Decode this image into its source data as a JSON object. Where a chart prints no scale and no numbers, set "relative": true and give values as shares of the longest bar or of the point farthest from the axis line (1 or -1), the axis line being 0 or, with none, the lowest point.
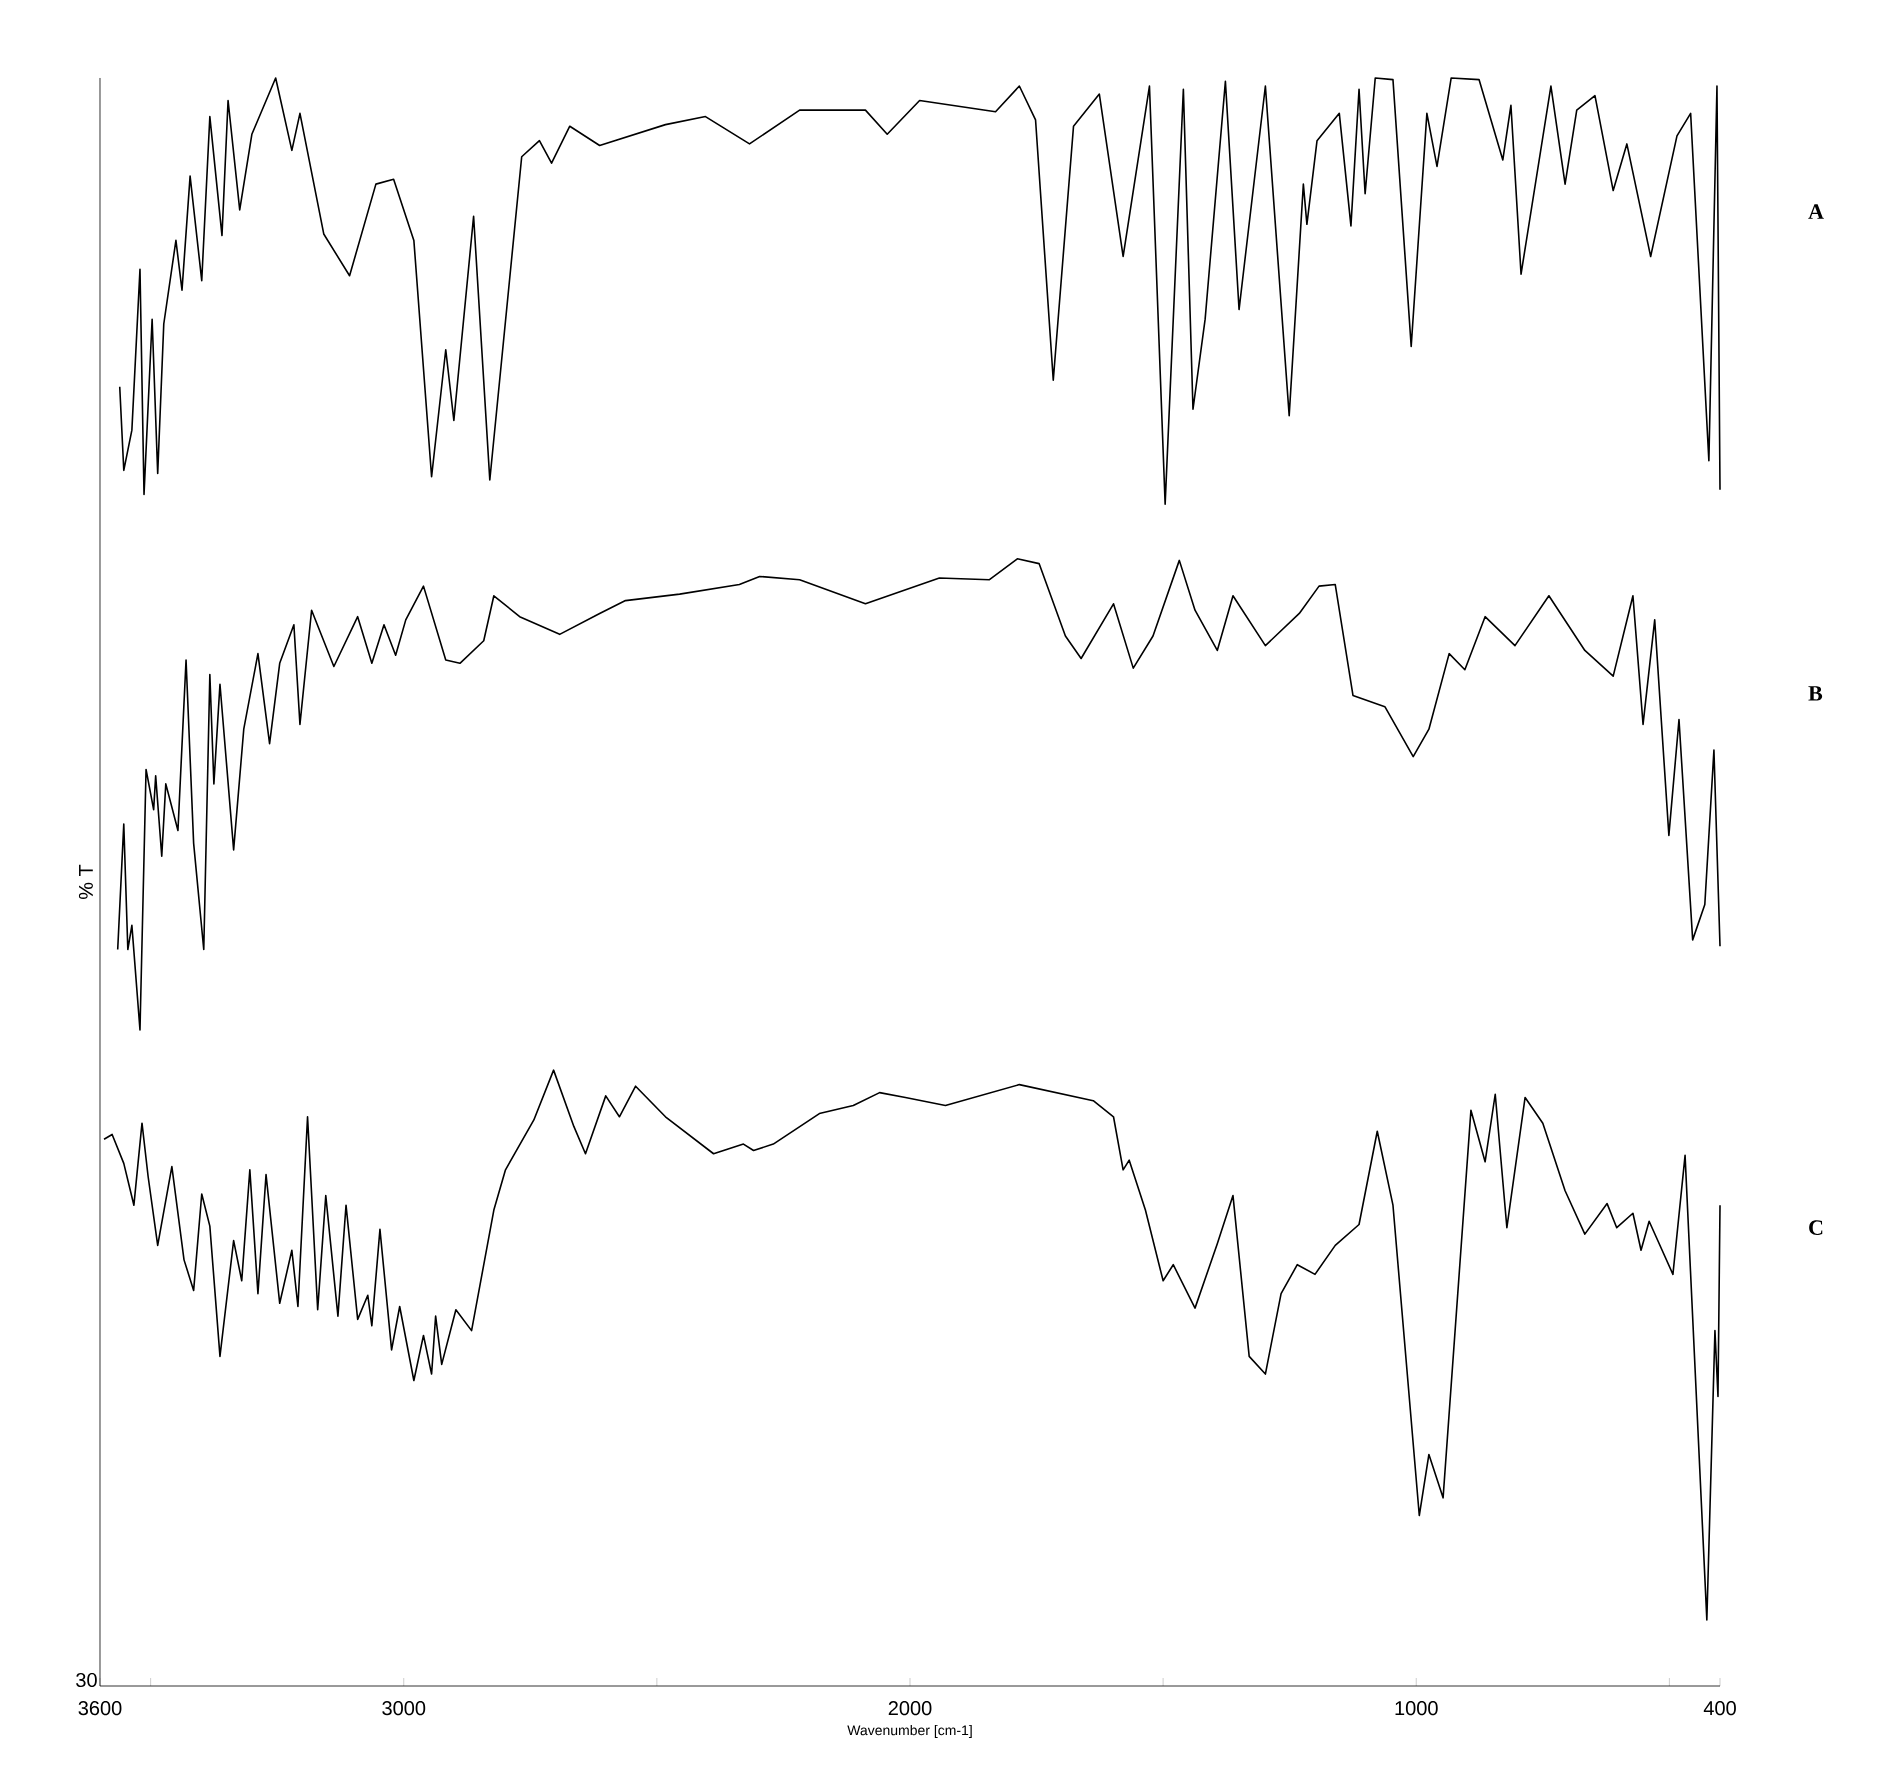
{
  "chart_data": {
    "type": "line",
    "relative": true,
    "xlabel": "Wavenumber [cm-1]",
    "ylabel": "% T",
    "xlim": [
      3600,
      400
    ],
    "xticks": [
      3600,
      {
        "value": 3500,
        "label": null
      },
      3000,
      {
        "value": 2500,
        "label": null
      },
      2000,
      {
        "value": 1500,
        "label": null
      },
      1000,
      {
        "value": 500,
        "label": null
      },
      400
    ],
    "legend": false,
    "grid": false,
    "marker": "none",
    "line_style": "solid",
    "annotations": [
      "30"
    ],
    "series": [
      {
        "name": "A",
        "color": "#000000",
        "x": [
          3561,
          3553,
          3537,
          3521,
          3513,
          3497,
          3486,
          3474,
          3450,
          3438,
          3422,
          3399,
          3383,
          3359,
          3347,
          3324,
          3300,
          3253,
          3221,
          3205,
          3158,
          3107,
          3055,
          3020,
          2980,
          2945,
          2917,
          2901,
          2862,
          2830,
          2767,
          2732,
          2708,
          2672,
          2613,
          2483,
          2404,
          2317,
          2218,
          2088,
          2045,
          1981,
          1831,
          1784,
          1752,
          1717,
          1677,
          1626,
          1579,
          1527,
          1496,
          1460,
          1441,
          1417,
          1377,
          1350,
          1298,
          1251,
          1223,
          1216,
          1196,
          1152,
          1129,
          1113,
          1101,
          1081,
          1046,
          1010,
          979,
          959,
          931,
          876,
          829,
          813,
          793,
          734,
          706,
          683,
          647,
          611,
          584,
          537,
          485,
          458,
          422,
          406,
          400
        ],
        "values": [
          0.808,
          0.756,
          0.781,
          0.881,
          0.741,
          0.85,
          0.754,
          0.847,
          0.899,
          0.868,
          0.939,
          0.874,
          0.976,
          0.902,
          0.986,
          0.918,
          0.965,
          1.0,
          0.955,
          0.978,
          0.903,
          0.877,
          0.934,
          0.937,
          0.899,
          0.752,
          0.831,
          0.787,
          0.914,
          0.75,
          0.951,
          0.961,
          0.947,
          0.97,
          0.958,
          0.971,
          0.976,
          0.959,
          0.98,
          0.98,
          0.965,
          0.986,
          0.979,
          0.995,
          0.974,
          0.812,
          0.97,
          0.99,
          0.889,
          0.995,
          0.735,
          0.993,
          0.794,
          0.85,
          0.998,
          0.856,
          0.995,
          0.79,
          0.934,
          0.909,
          0.961,
          0.978,
          0.908,
          0.993,
          0.928,
          1.0,
          0.999,
          0.833,
          0.978,
          0.945,
          1.0,
          0.999,
          0.949,
          0.983,
          0.878,
          0.995,
          0.934,
          0.98,
          0.989,
          0.93,
          0.959,
          0.889,
          0.964,
          0.978,
          0.762,
          0.995,
          0.744
        ]
      },
      {
        "name": "B",
        "color": "#000000",
        "x": [
          3565,
          3553,
          3545,
          3537,
          3521,
          3509,
          3494,
          3490,
          3478,
          3470,
          3446,
          3430,
          3415,
          3395,
          3383,
          3375,
          3363,
          3336,
          3316,
          3288,
          3265,
          3245,
          3217,
          3205,
          3182,
          3138,
          3091,
          3063,
          3039,
          3016,
          2996,
          2961,
          2917,
          2889,
          2842,
          2822,
          2771,
          2692,
          2613,
          2562,
          2455,
          2337,
          2297,
          2218,
          2088,
          1942,
          1843,
          1788,
          1745,
          1693,
          1662,
          1598,
          1559,
          1520,
          1468,
          1437,
          1393,
          1362,
          1298,
          1231,
          1192,
          1160,
          1125,
          1062,
          1006,
          975,
          935,
          904,
          864,
          805,
          738,
          667,
          611,
          572,
          552,
          529,
          501,
          481,
          454,
          430,
          412,
          400
        ],
        "values": [
          0.458,
          0.536,
          0.458,
          0.473,
          0.408,
          0.57,
          0.545,
          0.566,
          0.516,
          0.561,
          0.532,
          0.638,
          0.524,
          0.458,
          0.629,
          0.561,
          0.623,
          0.52,
          0.595,
          0.642,
          0.586,
          0.636,
          0.66,
          0.598,
          0.669,
          0.634,
          0.665,
          0.636,
          0.66,
          0.641,
          0.663,
          0.684,
          0.638,
          0.636,
          0.65,
          0.678,
          0.665,
          0.654,
          0.667,
          0.675,
          0.679,
          0.685,
          0.69,
          0.688,
          0.673,
          0.689,
          0.688,
          0.701,
          0.698,
          0.653,
          0.639,
          0.673,
          0.633,
          0.653,
          0.7,
          0.669,
          0.644,
          0.678,
          0.647,
          0.667,
          0.684,
          0.685,
          0.616,
          0.609,
          0.578,
          0.595,
          0.642,
          0.632,
          0.665,
          0.647,
          0.678,
          0.644,
          0.628,
          0.678,
          0.598,
          0.663,
          0.529,
          0.601,
          0.464,
          0.486,
          0.582,
          0.46
        ]
      },
      {
        "name": "C",
        "color": "#000000",
        "x": [
          3592,
          3576,
          3553,
          3533,
          3517,
          3505,
          3486,
          3458,
          3434,
          3415,
          3399,
          3383,
          3363,
          3336,
          3320,
          3304,
          3288,
          3272,
          3245,
          3221,
          3209,
          3190,
          3170,
          3154,
          3130,
          3114,
          3091,
          3071,
          3063,
          3047,
          3024,
          3008,
          2980,
          2961,
          2945,
          2937,
          2925,
          2897,
          2866,
          2822,
          2799,
          2743,
          2704,
          2664,
          2641,
          2601,
          2574,
          2542,
          2483,
          2388,
          2329,
          2309,
          2270,
          2179,
          2112,
          2060,
          2009,
          1930,
          1784,
          1638,
          1598,
          1579,
          1567,
          1535,
          1500,
          1480,
          1437,
          1393,
          1362,
          1330,
          1298,
          1267,
          1235,
          1200,
          1160,
          1113,
          1077,
          1046,
          994,
          975,
          947,
          892,
          864,
          844,
          821,
          785,
          750,
          706,
          667,
          623,
          604,
          572,
          556,
          540,
          493,
          469,
          426,
          410,
          404,
          400
        ],
        "values": [
          0.34,
          0.343,
          0.325,
          0.299,
          0.35,
          0.317,
          0.274,
          0.323,
          0.265,
          0.246,
          0.306,
          0.286,
          0.205,
          0.277,
          0.252,
          0.321,
          0.244,
          0.318,
          0.238,
          0.271,
          0.236,
          0.354,
          0.234,
          0.305,
          0.23,
          0.299,
          0.228,
          0.243,
          0.224,
          0.284,
          0.209,
          0.236,
          0.19,
          0.218,
          0.194,
          0.23,
          0.2,
          0.234,
          0.221,
          0.296,
          0.321,
          0.352,
          0.383,
          0.348,
          0.331,
          0.367,
          0.354,
          0.373,
          0.354,
          0.331,
          0.337,
          0.333,
          0.337,
          0.356,
          0.361,
          0.369,
          0.366,
          0.361,
          0.374,
          0.364,
          0.354,
          0.321,
          0.327,
          0.296,
          0.252,
          0.262,
          0.235,
          0.275,
          0.305,
          0.205,
          0.194,
          0.244,
          0.262,
          0.256,
          0.274,
          0.287,
          0.345,
          0.299,
          0.106,
          0.144,
          0.117,
          0.358,
          0.326,
          0.368,
          0.285,
          0.366,
          0.35,
          0.308,
          0.281,
          0.3,
          0.285,
          0.294,
          0.271,
          0.289,
          0.256,
          0.33,
          0.041,
          0.221,
          0.18,
          0.299
        ]
      }
    ]
  }
}
